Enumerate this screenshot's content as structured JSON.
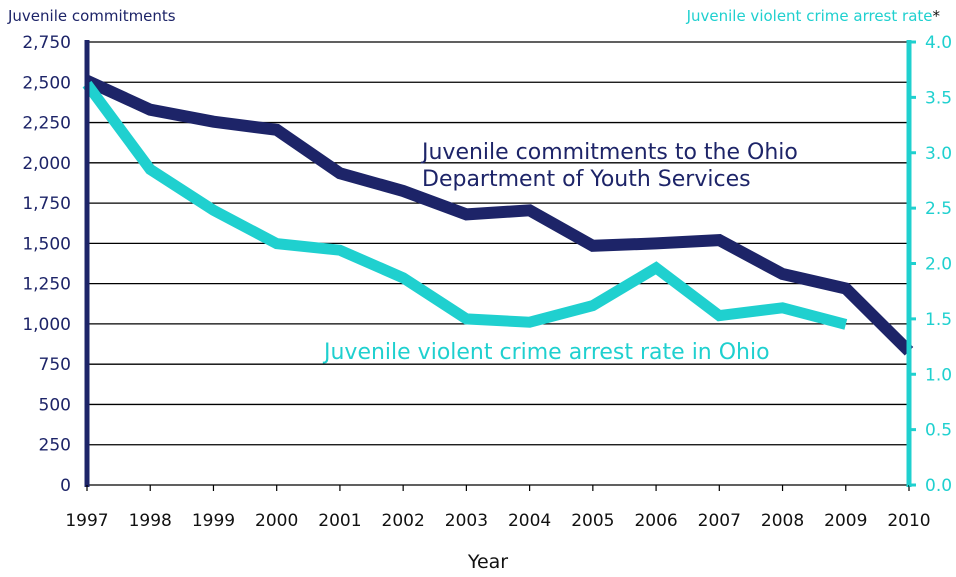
{
  "chart_data": {
    "type": "line",
    "xlabel": "Year",
    "x": [
      "1997",
      "1998",
      "1999",
      "2000",
      "2001",
      "2002",
      "2003",
      "2004",
      "2005",
      "2006",
      "2007",
      "2008",
      "2009",
      "2010"
    ],
    "y_left": {
      "label": "Juvenile commitments",
      "ylim": [
        0,
        2750
      ],
      "ticks": [
        "0",
        "250",
        "500",
        "750",
        "1,000",
        "1,250",
        "1,500",
        "1,750",
        "2,000",
        "2,250",
        "2,500",
        "2,750"
      ]
    },
    "y_right": {
      "label": "Juvenile violent crime arrest rate",
      "label_suffix": "*",
      "ylim": [
        0,
        4.0
      ],
      "ticks": [
        "0.0",
        "0.5",
        "1.0",
        "1.5",
        "2.0",
        "2.5",
        "3.0",
        "3.5",
        "4.0"
      ]
    },
    "grid": true,
    "series": [
      {
        "name_lines": [
          "Juvenile  commitments  to the Ohio",
          "Department of Youth Services"
        ],
        "axis": "left",
        "color": "#1d2468",
        "values": [
          2510,
          2330,
          2255,
          2205,
          1935,
          1825,
          1680,
          1705,
          1485,
          1500,
          1520,
          1310,
          1220,
          830
        ]
      },
      {
        "name": "Juvenile  violent crime arrest rate in Ohio",
        "axis": "right",
        "color": "#1fd0cf",
        "values": [
          3.62,
          2.85,
          2.48,
          2.18,
          2.12,
          1.87,
          1.5,
          1.47,
          1.62,
          1.96,
          1.53,
          1.6,
          1.45,
          null
        ]
      }
    ]
  }
}
